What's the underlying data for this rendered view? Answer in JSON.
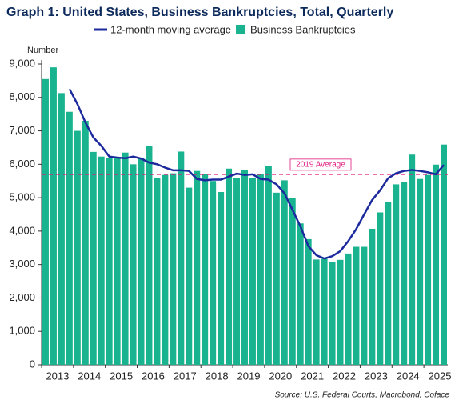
{
  "chart_data": {
    "type": "bar",
    "title": "Graph 1: United States, Business Bankruptcies, Total, Quarterly",
    "y_label": "Number",
    "source": "Source: U.S. Federal Courts, Macrobond, Coface",
    "categories": [
      "2013",
      null,
      null,
      null,
      "2014",
      null,
      null,
      null,
      "2015",
      null,
      null,
      null,
      "2016",
      null,
      null,
      null,
      "2017",
      null,
      null,
      null,
      "2018",
      null,
      null,
      null,
      "2019",
      null,
      null,
      null,
      "2020",
      null,
      null,
      null,
      "2021",
      null,
      null,
      null,
      "2022",
      null,
      null,
      null,
      "2023",
      null,
      null,
      null,
      "2024",
      null,
      null,
      null,
      "2025",
      null,
      null
    ],
    "series": [
      {
        "name": "12-month moving average",
        "type": "line",
        "color": "#1c2a9e",
        "values": [
          null,
          null,
          null,
          8250,
          7800,
          7250,
          6800,
          6550,
          6230,
          6200,
          6180,
          6230,
          6170,
          6050,
          6000,
          5900,
          5820,
          5820,
          5800,
          5560,
          5520,
          5540,
          5540,
          5630,
          5720,
          5680,
          5700,
          5560,
          5540,
          5400,
          5130,
          4640,
          4140,
          3550,
          3280,
          3180,
          3250,
          3400,
          3700,
          4060,
          4500,
          4930,
          5220,
          5580,
          5730,
          5800,
          5830,
          5800,
          5760,
          5700,
          5980
        ]
      },
      {
        "name": "Business Bankruptcies",
        "type": "bar",
        "color": "#19b38f",
        "values": [
          8550,
          8900,
          8130,
          7570,
          7000,
          7300,
          6370,
          6230,
          6180,
          6180,
          6350,
          6000,
          6200,
          6550,
          5600,
          5680,
          5730,
          6380,
          5300,
          5800,
          5720,
          5500,
          5170,
          5870,
          5600,
          5820,
          5600,
          5700,
          5950,
          5150,
          5520,
          4990,
          4230,
          3760,
          3150,
          3170,
          3080,
          3140,
          3330,
          3530,
          3530,
          4070,
          4560,
          4860,
          5400,
          5470,
          6290,
          5560,
          5680,
          5990,
          6590
        ]
      }
    ],
    "reference_line": {
      "value": 5700,
      "label": "2019 Average",
      "color": "#e0197d"
    },
    "ylim": [
      0,
      9000
    ],
    "yticks": [
      0,
      {
        "value": 1000,
        "label": "1,000"
      },
      {
        "value": 2000,
        "label": "2,000"
      },
      {
        "value": 3000,
        "label": "3,000"
      },
      {
        "value": 4000,
        "label": "4,000"
      },
      {
        "value": 5000,
        "label": "5,000"
      },
      {
        "value": 6000,
        "label": "6,000"
      },
      {
        "value": 7000,
        "label": "7,000"
      },
      {
        "value": 8000,
        "label": "8,000"
      },
      {
        "value": 9000,
        "label": "9,000"
      }
    ],
    "grid": false
  }
}
